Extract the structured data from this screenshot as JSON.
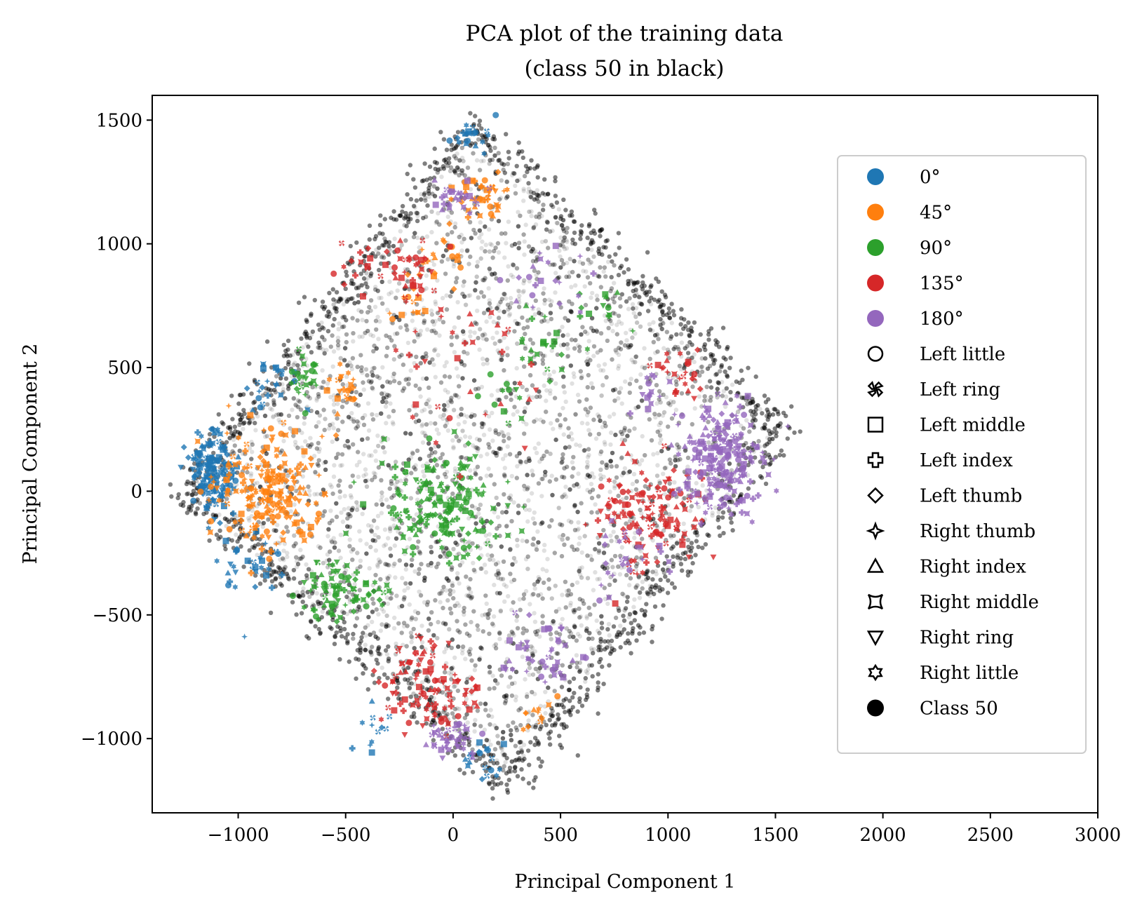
{
  "chart_data": {
    "type": "scatter",
    "title": "PCA plot of the training data",
    "subtitle": "(class 50 in black)",
    "xlabel": "Principal Component 1",
    "ylabel": "Principal Component 2",
    "xlim": [
      -1400,
      3000
    ],
    "ylim": [
      -1300,
      1600
    ],
    "xticks": [
      -1000,
      -500,
      0,
      500,
      1000,
      1500,
      2000,
      2500,
      3000
    ],
    "xtick_labels": [
      "−1000",
      "−500",
      "0",
      "500",
      "1000",
      "1500",
      "2000",
      "2500",
      "3000"
    ],
    "yticks": [
      -1000,
      -500,
      0,
      500,
      1000,
      1500
    ],
    "ytick_labels": [
      "−1000",
      "−500",
      "0",
      "500",
      "1000",
      "1500"
    ],
    "grid": false,
    "legend_position": "right",
    "background_cloud": {
      "description_color": "#000000",
      "shape_vertices": [
        [
          -1250,
          0
        ],
        [
          100,
          1480
        ],
        [
          1540,
          250
        ],
        [
          250,
          -1180
        ]
      ]
    },
    "series": [
      {
        "name": "0°",
        "color": "#1f77b4",
        "clusters": [
          {
            "center": [
              -1120,
              80
            ],
            "spread": [
              50,
              90
            ],
            "n": 160
          },
          {
            "center": [
              -930,
              -300
            ],
            "spread": [
              70,
              60
            ],
            "n": 30
          },
          {
            "center": [
              -820,
              450
            ],
            "spread": [
              60,
              60
            ],
            "n": 25
          },
          {
            "center": [
              100,
              1420
            ],
            "spread": [
              40,
              50
            ],
            "n": 20
          },
          {
            "center": [
              150,
              -1100
            ],
            "spread": [
              60,
              40
            ],
            "n": 18
          },
          {
            "center": [
              -400,
              -950
            ],
            "spread": [
              60,
              50
            ],
            "n": 12
          }
        ]
      },
      {
        "name": "45°",
        "color": "#ff7f0e",
        "clusters": [
          {
            "center": [
              -870,
              0
            ],
            "spread": [
              130,
              110
            ],
            "n": 200
          },
          {
            "center": [
              150,
              1200
            ],
            "spread": [
              60,
              50
            ],
            "n": 40
          },
          {
            "center": [
              -500,
              430
            ],
            "spread": [
              50,
              50
            ],
            "n": 20
          },
          {
            "center": [
              -30,
              950
            ],
            "spread": [
              50,
              50
            ],
            "n": 18
          },
          {
            "center": [
              -200,
              780
            ],
            "spread": [
              50,
              40
            ],
            "n": 15
          },
          {
            "center": [
              420,
              -900
            ],
            "spread": [
              50,
              40
            ],
            "n": 12
          }
        ]
      },
      {
        "name": "90°",
        "color": "#2ca02c",
        "clusters": [
          {
            "center": [
              -40,
              -60
            ],
            "spread": [
              140,
              110
            ],
            "n": 170
          },
          {
            "center": [
              -560,
              -400
            ],
            "spread": [
              70,
              60
            ],
            "n": 60
          },
          {
            "center": [
              -700,
              450
            ],
            "spread": [
              50,
              60
            ],
            "n": 25
          },
          {
            "center": [
              -400,
              -420
            ],
            "spread": [
              80,
              40
            ],
            "n": 20
          },
          {
            "center": [
              400,
              600
            ],
            "spread": [
              80,
              60
            ],
            "n": 20
          },
          {
            "center": [
              700,
              750
            ],
            "spread": [
              60,
              40
            ],
            "n": 12
          },
          {
            "center": [
              250,
              400
            ],
            "spread": [
              80,
              60
            ],
            "n": 12
          }
        ]
      },
      {
        "name": "135°",
        "color": "#d62728",
        "clusters": [
          {
            "center": [
              900,
              -80
            ],
            "spread": [
              130,
              110
            ],
            "n": 130
          },
          {
            "center": [
              -100,
              -800
            ],
            "spread": [
              120,
              100
            ],
            "n": 100
          },
          {
            "center": [
              -200,
              900
            ],
            "spread": [
              80,
              80
            ],
            "n": 35
          },
          {
            "center": [
              1050,
              450
            ],
            "spread": [
              60,
              50
            ],
            "n": 25
          },
          {
            "center": [
              100,
              500
            ],
            "spread": [
              200,
              150
            ],
            "n": 30
          },
          {
            "center": [
              -420,
              900
            ],
            "spread": [
              60,
              60
            ],
            "n": 15
          }
        ]
      },
      {
        "name": "180°",
        "color": "#9467bd",
        "clusters": [
          {
            "center": [
              1260,
              130
            ],
            "spread": [
              90,
              110
            ],
            "n": 220
          },
          {
            "center": [
              0,
              -1000
            ],
            "spread": [
              60,
              50
            ],
            "n": 40
          },
          {
            "center": [
              450,
              -650
            ],
            "spread": [
              90,
              70
            ],
            "n": 40
          },
          {
            "center": [
              20,
              1200
            ],
            "spread": [
              50,
              40
            ],
            "n": 25
          },
          {
            "center": [
              800,
              -300
            ],
            "spread": [
              80,
              60
            ],
            "n": 25
          },
          {
            "center": [
              400,
              850
            ],
            "spread": [
              100,
              60
            ],
            "n": 20
          },
          {
            "center": [
              950,
              400
            ],
            "spread": [
              60,
              50
            ],
            "n": 15
          }
        ]
      }
    ],
    "legend": {
      "colors": [
        {
          "label": "0°",
          "color": "#1f77b4"
        },
        {
          "label": "45°",
          "color": "#ff7f0e"
        },
        {
          "label": "90°",
          "color": "#2ca02c"
        },
        {
          "label": "135°",
          "color": "#d62728"
        },
        {
          "label": "180°",
          "color": "#9467bd"
        }
      ],
      "markers": [
        {
          "label": "Left little",
          "marker": "circle"
        },
        {
          "label": "Left ring",
          "marker": "x-filled"
        },
        {
          "label": "Left middle",
          "marker": "square"
        },
        {
          "label": "Left index",
          "marker": "plus-filled"
        },
        {
          "label": "Left thumb",
          "marker": "diamond"
        },
        {
          "label": "Right thumb",
          "marker": "star4"
        },
        {
          "label": "Right index",
          "marker": "triangle-up"
        },
        {
          "label": "Right middle",
          "marker": "concave-square"
        },
        {
          "label": "Right ring",
          "marker": "triangle-down"
        },
        {
          "label": "Right little",
          "marker": "star6"
        },
        {
          "label": "Class 50",
          "marker": "filled-circle"
        }
      ]
    }
  }
}
